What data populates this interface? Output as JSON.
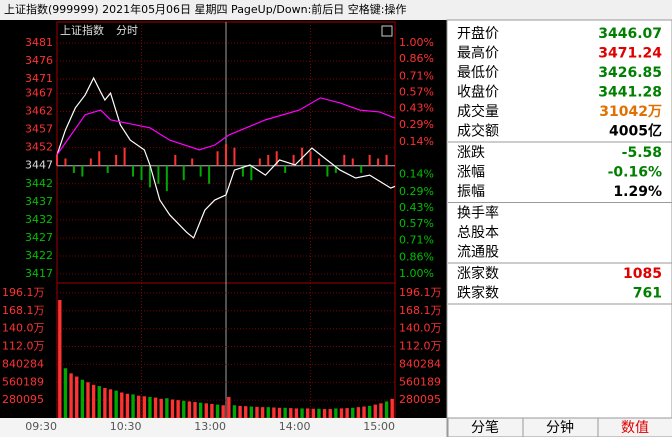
{
  "title_bar": "上证指数(999999)  2021年05月06日 星期四 PageUp/Down:前后日 空格键:操作",
  "chart_data": {
    "type": "line",
    "title": "上证指数",
    "subtitle": "分时",
    "xlim": [
      0,
      240
    ],
    "xticks": [
      {
        "value": 0,
        "label": "09:30"
      },
      {
        "value": 60,
        "label": "10:30"
      },
      {
        "value": 120,
        "label": "13:00"
      },
      {
        "value": 180,
        "label": "14:00"
      },
      {
        "value": 240,
        "label": "15:00"
      }
    ],
    "ylim": [
      3414.8,
      3486.8
    ],
    "yticks": [
      3481,
      3476,
      3471,
      3467,
      3462,
      3457,
      3452,
      3447,
      3442,
      3437,
      3432,
      3427,
      3422,
      3417
    ],
    "y2lim": [
      -1.07,
      1.18
    ],
    "y2ticks": [
      {
        "value": 1.0,
        "label": "1.00%"
      },
      {
        "value": 0.86,
        "label": "0.86%"
      },
      {
        "value": 0.71,
        "label": "0.71%"
      },
      {
        "value": 0.57,
        "label": "0.57%"
      },
      {
        "value": 0.43,
        "label": "0.43%"
      },
      {
        "value": 0.29,
        "label": "0.29%"
      },
      {
        "value": 0.14,
        "label": "0.14%"
      },
      {
        "value": -0.14,
        "label": "0.14%"
      },
      {
        "value": -0.29,
        "label": "0.29%"
      },
      {
        "value": -0.43,
        "label": "0.43%"
      },
      {
        "value": -0.57,
        "label": "0.57%"
      },
      {
        "value": -0.71,
        "label": "0.71%"
      },
      {
        "value": -0.86,
        "label": "0.86%"
      },
      {
        "value": -1.0,
        "label": "1.00%"
      }
    ],
    "series": [
      {
        "color": "#ffffff",
        "x": [
          0,
          6,
          13,
          20,
          26,
          31,
          34,
          38,
          45,
          52,
          62,
          66,
          73,
          80,
          87,
          92,
          97,
          105,
          112,
          120,
          126,
          137,
          148,
          158,
          169,
          181,
          190,
          201,
          212,
          222,
          237,
          240
        ],
        "values": [
          3450.0,
          3456.9,
          3463.0,
          3466.6,
          3471.3,
          3467.4,
          3465.2,
          3467.1,
          3458.3,
          3454.1,
          3451.4,
          3447.2,
          3437.5,
          3433.4,
          3430.6,
          3428.6,
          3427.0,
          3434.7,
          3437.5,
          3438.9,
          3445.8,
          3447.2,
          3444.4,
          3448.6,
          3447.2,
          3451.9,
          3449.1,
          3445.8,
          3443.6,
          3444.4,
          3440.8,
          3441.3
        ]
      },
      {
        "color": "#ff00ff",
        "x": [
          0,
          20,
          31,
          38,
          66,
          80,
          101,
          112,
          122,
          148,
          172,
          187,
          201,
          215,
          229,
          240
        ],
        "values": [
          3450.0,
          3461.1,
          3462.4,
          3459.7,
          3457.5,
          3454.1,
          3451.4,
          3452.7,
          3455.5,
          3459.7,
          3462.4,
          3465.8,
          3464.4,
          3462.4,
          3461.9,
          3460.2
        ]
      }
    ],
    "strength": {
      "up_color": "#ff3232",
      "down_color": "#00a800",
      "x": [
        0,
        6,
        12,
        18,
        24,
        30,
        36,
        42,
        48,
        54,
        60,
        66,
        72,
        78,
        84,
        90,
        96,
        102,
        108,
        114,
        120,
        126,
        132,
        138,
        144,
        150,
        156,
        162,
        168,
        174,
        180,
        186,
        192,
        198,
        204,
        210,
        216,
        222,
        228,
        234
      ],
      "values": [
        3,
        2,
        -2,
        -3,
        2,
        4,
        -2,
        3,
        5,
        -3,
        -4,
        -6,
        -5,
        -7,
        3,
        -4,
        2,
        -3,
        -5,
        4,
        6,
        5,
        -3,
        -4,
        2,
        3,
        4,
        -2,
        3,
        5,
        4,
        2,
        -3,
        -2,
        3,
        2,
        -2,
        3,
        2,
        3
      ]
    },
    "volume": {
      "up_color": "#ff3232",
      "down_color": "#00a800",
      "ylim": [
        0,
        2085000
      ],
      "yticks": [
        {
          "value": 1961000,
          "label": "196.1万"
        },
        {
          "value": 1681000,
          "label": "168.1万"
        },
        {
          "value": 1400000,
          "label": "140.0万"
        },
        {
          "value": 1120000,
          "label": "112.0万"
        },
        840284,
        560189,
        280095
      ],
      "values": [
        1850000,
        780000,
        700000,
        650000,
        600000,
        560000,
        520000,
        500000,
        470000,
        450000,
        430000,
        400000,
        380000,
        370000,
        350000,
        340000,
        330000,
        320000,
        300000,
        310000,
        290000,
        280000,
        270000,
        260000,
        250000,
        240000,
        230000,
        220000,
        210000,
        200000,
        330000,
        200000,
        190000,
        185000,
        180000,
        175000,
        170000,
        170000,
        165000,
        160000,
        160000,
        155000,
        150000,
        150000,
        150000,
        145000,
        145000,
        140000,
        140000,
        150000,
        150000,
        155000,
        160000,
        170000,
        180000,
        190000,
        210000,
        230000,
        260000,
        300000
      ]
    }
  },
  "info": {
    "groups": [
      [
        {
          "label": "开盘价",
          "value": "3446.07",
          "color": "#008000"
        },
        {
          "label": "最高价",
          "value": "3471.24",
          "color": "#e00000"
        },
        {
          "label": "最低价",
          "value": "3426.85",
          "color": "#008000"
        },
        {
          "label": "收盘价",
          "value": "3441.28",
          "color": "#008000"
        },
        {
          "label": "成交量",
          "value": "31042万",
          "color": "#e07000"
        },
        {
          "label": "成交额",
          "value": "4005亿",
          "color": "#000000"
        }
      ],
      [
        {
          "label": "涨跌",
          "value": "-5.58",
          "color": "#008000"
        },
        {
          "label": "涨幅",
          "value": "-0.16%",
          "color": "#008000"
        },
        {
          "label": "振幅",
          "value": "1.29%",
          "color": "#000000"
        }
      ],
      [
        {
          "label": "换手率"
        },
        {
          "label": "总股本"
        },
        {
          "label": "流通股"
        }
      ],
      [
        {
          "label": "涨家数",
          "value": "1085",
          "color": "#e00000"
        },
        {
          "label": "跌家数",
          "value": "761",
          "color": "#008000"
        }
      ]
    ]
  },
  "tabs": [
    "分笔",
    "分钟",
    "数值"
  ]
}
